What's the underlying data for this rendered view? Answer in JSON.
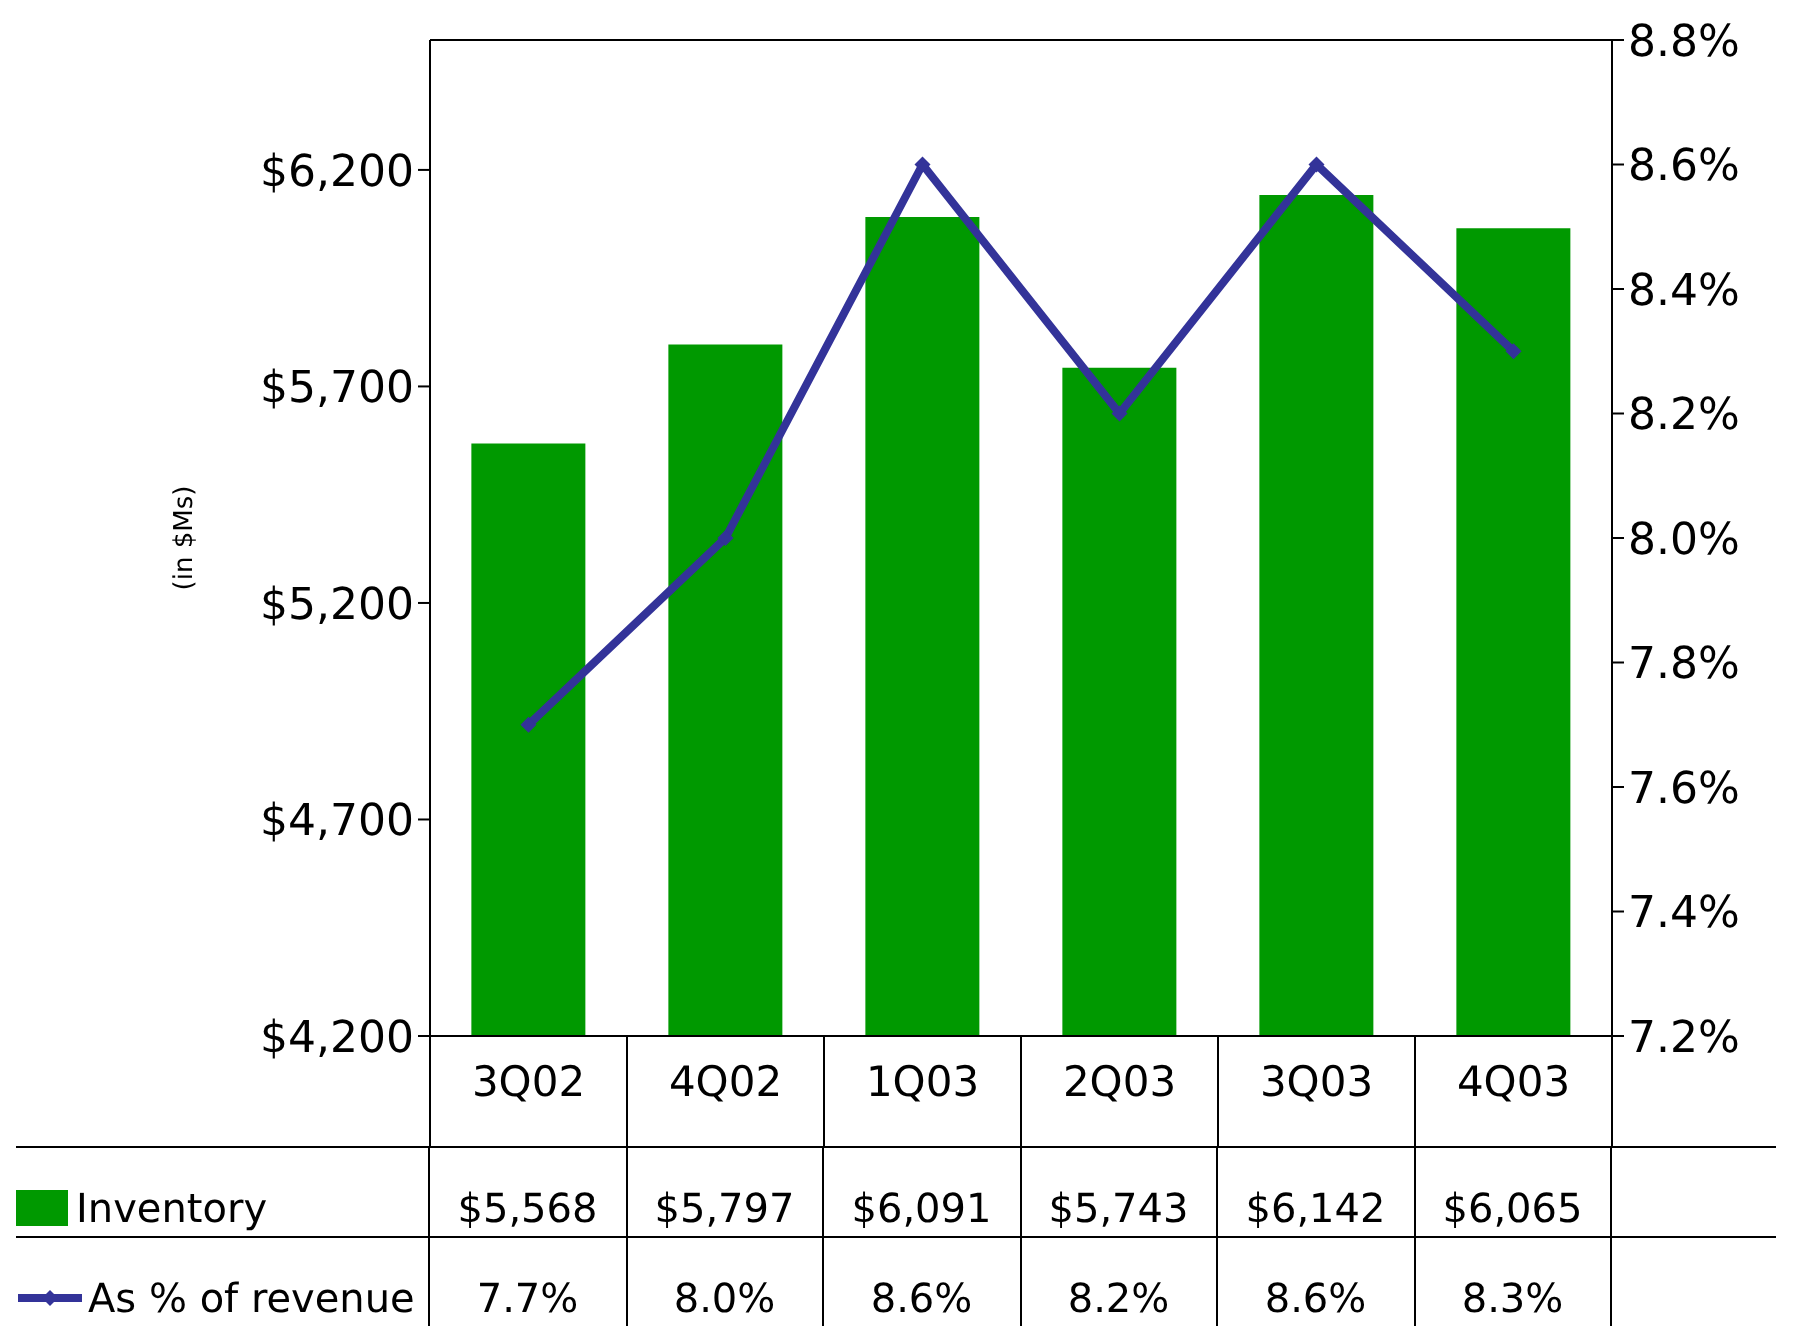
{
  "chart_data": {
    "type": "bar",
    "ylabel": "(in $Ms)",
    "categories": [
      "3Q02",
      "4Q02",
      "1Q03",
      "2Q03",
      "3Q03",
      "4Q03"
    ],
    "series": [
      {
        "name": "Inventory",
        "color": "#009900",
        "values": [
          5568,
          5797,
          6091,
          5743,
          6142,
          6065
        ],
        "value_labels": [
          "$5,568",
          "$5,797",
          "$6,091",
          "$5,743",
          "$6,142",
          "$6,065"
        ]
      },
      {
        "name": "As % of revenue",
        "type": "line",
        "axis": "y2",
        "color": "#333399",
        "values": [
          7.7,
          8.0,
          8.6,
          8.2,
          8.6,
          8.3
        ],
        "value_labels": [
          "7.7%",
          "8.0%",
          "8.6%",
          "8.2%",
          "8.6%",
          "8.3%"
        ]
      }
    ],
    "ylim": [
      4200,
      6500
    ],
    "yticks": [
      {
        "value": 4200,
        "label": "$4,200"
      },
      {
        "value": 4700,
        "label": "$4,700"
      },
      {
        "value": 5200,
        "label": "$5,200"
      },
      {
        "value": 5700,
        "label": "$5,700"
      },
      {
        "value": 6200,
        "label": "$6,200"
      }
    ],
    "y2lim": [
      7.2,
      8.8
    ],
    "y2ticks": [
      {
        "value": 7.2,
        "label": "7.2%"
      },
      {
        "value": 7.4,
        "label": "7.4%"
      },
      {
        "value": 7.6,
        "label": "7.6%"
      },
      {
        "value": 7.8,
        "label": "7.8%"
      },
      {
        "value": 8.0,
        "label": "8.0%"
      },
      {
        "value": 8.2,
        "label": "8.2%"
      },
      {
        "value": 8.4,
        "label": "8.4%"
      },
      {
        "value": 8.6,
        "label": "8.6%"
      },
      {
        "value": 8.8,
        "label": "8.8%"
      }
    ],
    "legend": "bottom",
    "marker": "diamond",
    "line_style": "solid"
  }
}
